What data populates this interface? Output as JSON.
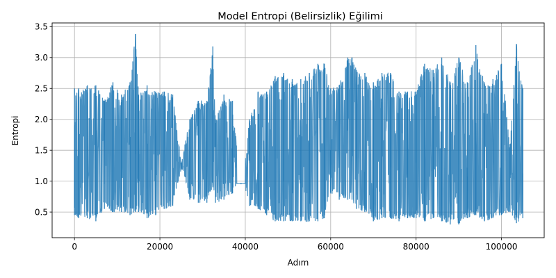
{
  "chart_data": {
    "type": "line",
    "title": "Model Entropi (Belirsizlik) Eğilimi",
    "xlabel": "Adım",
    "ylabel": "Entropi",
    "xlim": [
      -5240,
      110000
    ],
    "ylim": [
      0.085,
      3.56
    ],
    "xticks": [
      0,
      20000,
      40000,
      60000,
      80000,
      100000
    ],
    "xtick_labels": [
      "0",
      "20000",
      "40000",
      "60000",
      "80000",
      "100000"
    ],
    "yticks": [
      0.5,
      1.0,
      1.5,
      2.0,
      2.5,
      3.0,
      3.5
    ],
    "ytick_labels": [
      "0.5",
      "1.0",
      "1.5",
      "2.0",
      "2.5",
      "3.0",
      "3.5"
    ],
    "grid": true,
    "series": [
      {
        "name": "",
        "color": "#1f77b4",
        "envelope_x": [
          0,
          1000,
          3000,
          5000,
          7000,
          9000,
          11000,
          13000,
          14300,
          15000,
          17000,
          19000,
          21000,
          23000,
          25000,
          27000,
          29000,
          31000,
          32400,
          33000,
          35000,
          37000,
          39000,
          41000,
          43000,
          45000,
          47000,
          49000,
          51000,
          53000,
          55000,
          57000,
          58500,
          60000,
          62000,
          64000,
          65000,
          66000,
          68000,
          70000,
          72000,
          74000,
          76000,
          78000,
          80000,
          82000,
          84000,
          86000,
          88000,
          90000,
          92000,
          94000,
          96000,
          98000,
          100000,
          102000,
          103500,
          105000
        ],
        "envelope_high": [
          2.5,
          2.5,
          2.55,
          2.55,
          2.3,
          2.6,
          2.4,
          2.6,
          3.38,
          2.4,
          2.55,
          2.45,
          2.45,
          2.4,
          1.3,
          2.0,
          2.3,
          2.3,
          3.18,
          2.0,
          2.4,
          2.3,
          0.97,
          2.0,
          2.45,
          2.45,
          2.7,
          2.75,
          2.65,
          2.65,
          2.75,
          2.9,
          2.9,
          2.5,
          2.55,
          3.0,
          3.0,
          2.8,
          2.75,
          2.6,
          2.75,
          2.75,
          2.45,
          2.45,
          2.45,
          2.9,
          2.8,
          3.0,
          2.6,
          3.0,
          2.6,
          3.2,
          2.6,
          2.65,
          2.9,
          1.6,
          3.22,
          2.5
        ],
        "envelope_low": [
          0.45,
          0.4,
          0.4,
          0.35,
          0.55,
          0.5,
          0.5,
          0.45,
          0.5,
          0.5,
          0.4,
          0.45,
          0.55,
          0.6,
          1.2,
          0.7,
          0.65,
          0.65,
          0.9,
          0.65,
          0.7,
          0.8,
          0.95,
          0.6,
          0.55,
          0.45,
          0.35,
          0.35,
          0.35,
          0.35,
          0.35,
          0.35,
          0.4,
          0.8,
          0.7,
          0.7,
          0.7,
          0.55,
          0.5,
          0.35,
          0.4,
          0.4,
          0.35,
          0.4,
          0.4,
          0.35,
          0.4,
          0.35,
          0.3,
          0.3,
          0.4,
          0.45,
          0.35,
          0.4,
          0.45,
          0.5,
          0.32,
          0.4
        ],
        "flat_segment": {
          "x_start": 38000,
          "x_end": 40000,
          "y": 0.96
        }
      }
    ]
  }
}
